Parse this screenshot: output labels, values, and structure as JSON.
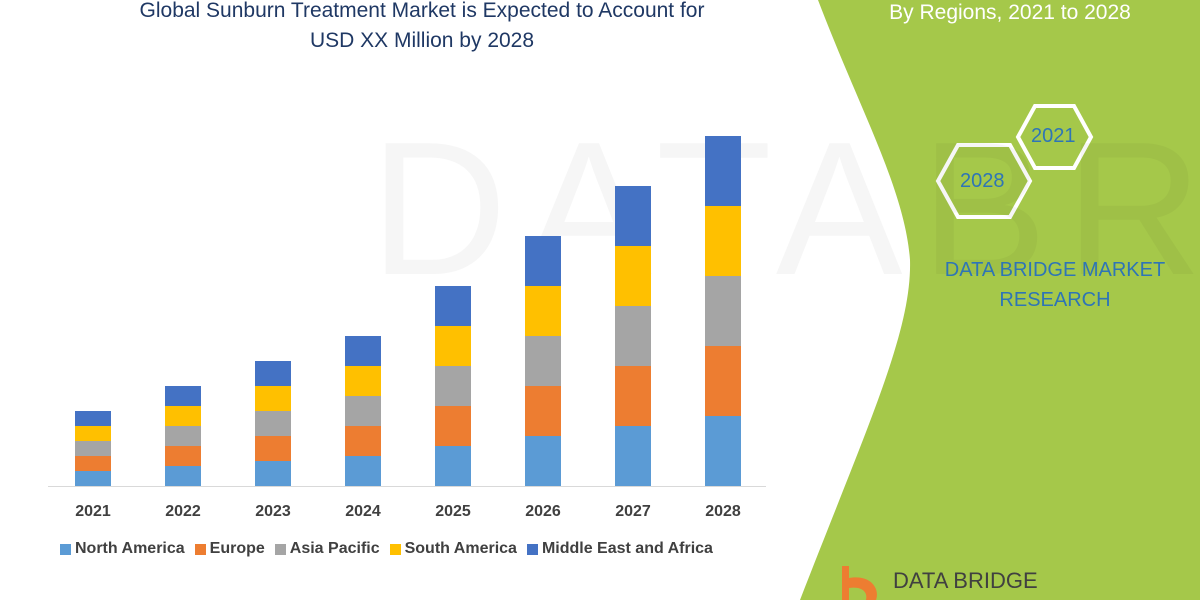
{
  "chart_data": {
    "type": "bar",
    "stacked": true,
    "title": "Global Sunburn Treatment Market is Expected to Account for USD XX Million by 2028",
    "title_lines": [
      "Global Sunburn Treatment Market is Expected to Account for",
      "USD XX Million by 2028"
    ],
    "xlabel": "",
    "ylabel": "",
    "categories": [
      "2021",
      "2022",
      "2023",
      "2024",
      "2025",
      "2026",
      "2027",
      "2028"
    ],
    "series": [
      {
        "name": "North America",
        "color": "#5b9bd5",
        "values": [
          15,
          20,
          25,
          30,
          40,
          50,
          60,
          70
        ]
      },
      {
        "name": "Europe",
        "color": "#ed7d31",
        "values": [
          15,
          20,
          25,
          30,
          40,
          50,
          60,
          70
        ]
      },
      {
        "name": "Asia Pacific",
        "color": "#a5a5a5",
        "values": [
          15,
          20,
          25,
          30,
          40,
          50,
          60,
          70
        ]
      },
      {
        "name": "South America",
        "color": "#ffc000",
        "values": [
          15,
          20,
          25,
          30,
          40,
          50,
          60,
          70
        ]
      },
      {
        "name": "Middle East and Africa",
        "color": "#4472c4",
        "values": [
          15,
          20,
          25,
          30,
          40,
          50,
          60,
          70
        ]
      }
    ],
    "ylim": [
      0,
      350
    ],
    "grid": false,
    "legend": "bottom"
  },
  "side_panel": {
    "subtitle": "By Regions, 2021 to 2028",
    "hex_start": "2021",
    "hex_end": "2028",
    "company": [
      "DATA BRIDGE MARKET",
      "RESEARCH"
    ],
    "logo_text": "DATA BRIDGE",
    "panel_color": "#a5c84a"
  }
}
